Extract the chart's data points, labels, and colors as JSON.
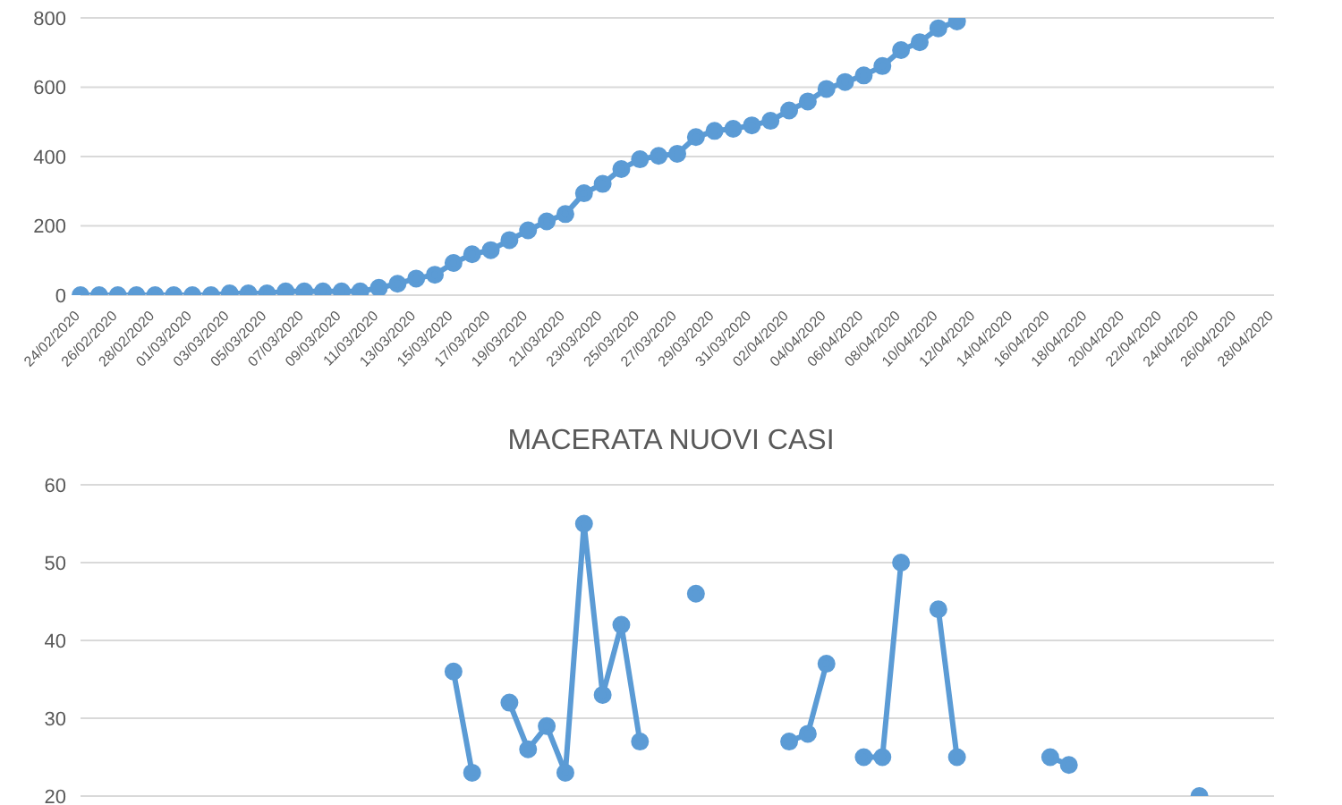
{
  "chart_data": [
    {
      "type": "line",
      "categories": [
        "24/02/2020",
        null,
        "26/02/2020",
        null,
        "28/02/2020",
        null,
        "01/03/2020",
        null,
        "03/03/2020",
        null,
        "05/03/2020",
        null,
        "07/03/2020",
        null,
        "09/03/2020",
        null,
        "11/03/2020",
        null,
        "13/03/2020",
        null,
        "15/03/2020",
        null,
        "17/03/2020",
        null,
        "19/03/2020",
        null,
        "21/03/2020",
        null,
        "23/03/2020",
        null,
        "25/03/2020",
        null,
        "27/03/2020",
        null,
        "29/03/2020",
        null,
        "31/03/2020",
        null,
        "02/04/2020",
        null,
        "04/04/2020",
        null,
        "06/04/2020",
        null,
        "08/04/2020",
        null,
        "10/04/2020",
        null,
        "12/04/2020",
        null,
        "14/04/2020",
        null,
        "16/04/2020",
        null,
        "18/04/2020",
        null,
        "20/04/2020",
        null,
        "22/04/2020",
        null,
        "24/04/2020",
        null,
        "26/04/2020",
        null,
        "28/04/2020"
      ],
      "series": [
        {
          "color": "#5b9bd5",
          "values": [
            0,
            0,
            0,
            0,
            0,
            0,
            0,
            0,
            5,
            5,
            5,
            11,
            11,
            11,
            11,
            11,
            21,
            33,
            48,
            59,
            93,
            118,
            130,
            159,
            187,
            213,
            234,
            294,
            321,
            364,
            392,
            402,
            408,
            456,
            474,
            480,
            490,
            503,
            533,
            559,
            595,
            615,
            634,
            661,
            707,
            730,
            770,
            790,
            null,
            null,
            null,
            null,
            null,
            null,
            null,
            null,
            null,
            null,
            null,
            null,
            null,
            null,
            null,
            null,
            null
          ]
        }
      ],
      "ylim": [
        0,
        800
      ],
      "yticks": [
        0,
        200,
        400,
        600,
        800
      ],
      "grid": "y",
      "legend": false,
      "marker": "circle",
      "line_style": "solid"
    },
    {
      "type": "line",
      "title": "MACERATA NUOVI CASI",
      "categories": [
        null,
        null,
        null,
        null,
        null,
        null,
        null,
        null,
        null,
        null,
        null,
        null,
        null,
        null,
        null,
        null,
        null,
        null,
        null,
        null,
        null,
        null,
        null,
        null,
        null,
        null,
        null,
        null,
        null,
        null,
        null,
        null,
        null,
        null,
        null,
        null,
        null,
        null,
        null,
        null,
        null,
        null,
        null,
        null,
        null,
        null,
        null,
        null,
        null,
        null,
        null,
        null,
        null,
        null,
        null,
        null,
        null,
        null,
        null,
        null,
        null,
        null,
        null,
        null,
        null
      ],
      "series": [
        {
          "color": "#5b9bd5",
          "values": [
            null,
            null,
            null,
            null,
            null,
            null,
            null,
            null,
            null,
            null,
            null,
            null,
            null,
            null,
            null,
            null,
            null,
            null,
            null,
            null,
            36,
            23,
            null,
            32,
            26,
            29,
            23,
            55,
            33,
            42,
            27,
            null,
            null,
            46,
            null,
            null,
            null,
            null,
            27,
            28,
            37,
            null,
            25,
            25,
            50,
            null,
            44,
            25,
            null,
            null,
            null,
            null,
            25,
            24,
            null,
            null,
            null,
            null,
            null,
            null,
            20,
            null,
            null,
            null,
            null
          ]
        }
      ],
      "ylim": [
        20,
        60
      ],
      "yticks": [
        20,
        30,
        40,
        50,
        60
      ],
      "grid": "y",
      "legend": false,
      "marker": "circle",
      "line_style": "solid"
    }
  ]
}
